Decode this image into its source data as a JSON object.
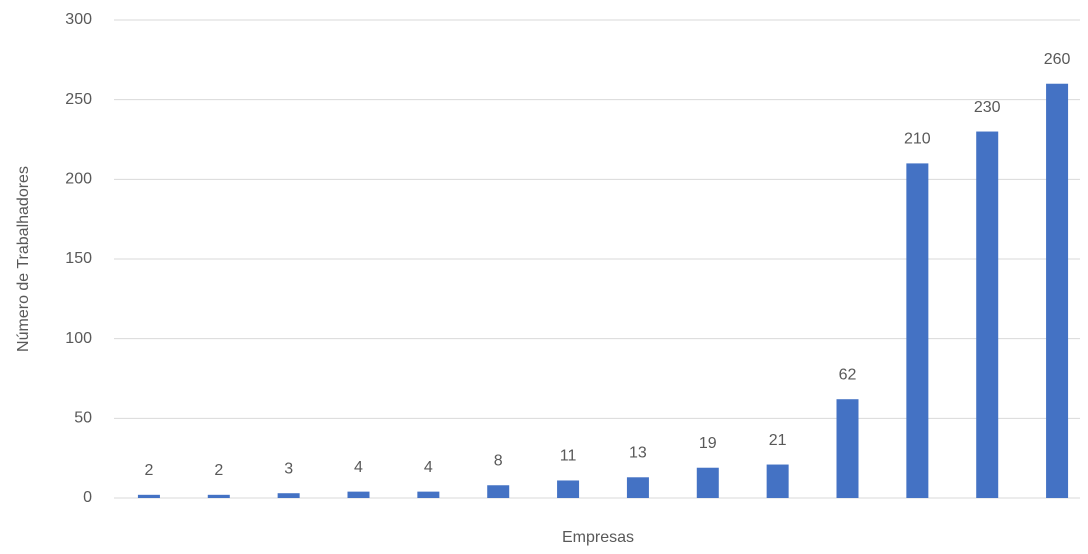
{
  "chart_data": {
    "type": "bar",
    "x_label": "Empresas",
    "y_label": "Número de Trabalhadores",
    "categories": [
      null,
      null,
      null,
      null,
      null,
      null,
      null,
      null,
      null,
      null,
      null,
      null,
      null,
      null
    ],
    "values": [
      2,
      2,
      3,
      4,
      4,
      8,
      11,
      13,
      19,
      21,
      62,
      210,
      230,
      260
    ],
    "color": "#4472c4",
    "ylim": [
      0,
      300
    ],
    "yticks": [
      0,
      50,
      100,
      150,
      200,
      250,
      300
    ],
    "grid": true,
    "data_labels": true
  }
}
